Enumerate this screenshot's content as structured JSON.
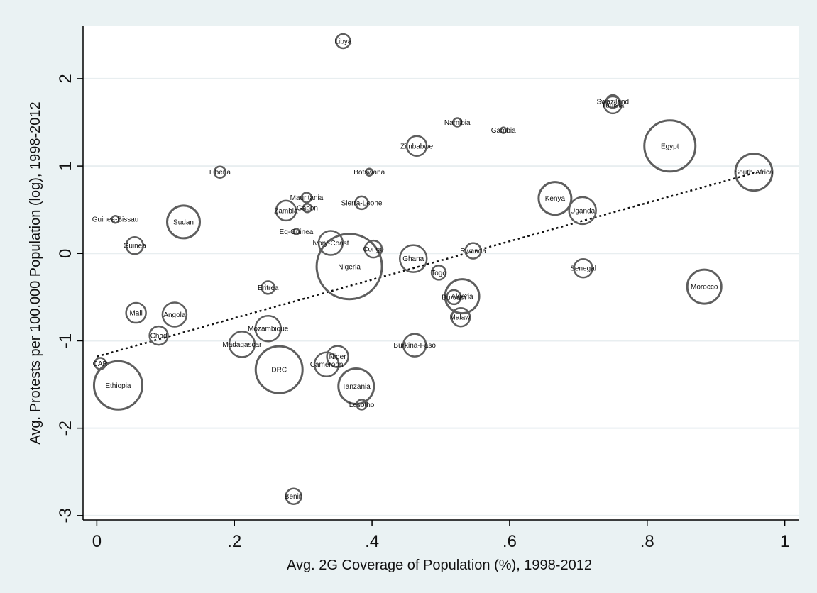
{
  "chart_data": {
    "type": "scatter",
    "title": "",
    "xlabel": "Avg. 2G Coverage of Population (%), 1998-2012",
    "ylabel": "Avg. Protests per 100.000 Population (log), 1998-2012",
    "xlim": [
      -0.02,
      1.02
    ],
    "ylim": [
      -3.05,
      2.6
    ],
    "x_ticks": [
      0,
      0.2,
      0.4,
      0.6,
      0.8,
      1
    ],
    "x_tick_labels": [
      "0",
      ".2",
      ".4",
      ".6",
      ".8",
      "1"
    ],
    "y_ticks": [
      -3,
      -2,
      -1,
      0,
      1,
      2
    ],
    "y_tick_labels": [
      "-3",
      "-2",
      "-1",
      "0",
      "1",
      "2"
    ],
    "grid": "horizontal",
    "marker": "hollow circle, size weighted by population",
    "fit_line": {
      "style": "dotted",
      "x": [
        0,
        0.955
      ],
      "y": [
        -1.18,
        0.92
      ]
    },
    "points": [
      {
        "label": "Libya",
        "x": 0.358,
        "y": 2.43,
        "size": 10
      },
      {
        "label": "Swaziland",
        "x": 0.75,
        "y": 1.74,
        "size": 9
      },
      {
        "label": "Tunisia",
        "x": 0.75,
        "y": 1.7,
        "size": 12
      },
      {
        "label": "Namibia",
        "x": 0.524,
        "y": 1.5,
        "size": 6
      },
      {
        "label": "Gambia",
        "x": 0.591,
        "y": 1.41,
        "size": 4
      },
      {
        "label": "Egypt",
        "x": 0.833,
        "y": 1.23,
        "size": 36
      },
      {
        "label": "Zimbabwe",
        "x": 0.465,
        "y": 1.23,
        "size": 14
      },
      {
        "label": "South-Africa",
        "x": 0.955,
        "y": 0.93,
        "size": 26
      },
      {
        "label": "Liberia",
        "x": 0.179,
        "y": 0.93,
        "size": 8
      },
      {
        "label": "Botswana",
        "x": 0.396,
        "y": 0.93,
        "size": 5
      },
      {
        "label": "Mauritania",
        "x": 0.305,
        "y": 0.64,
        "size": 7
      },
      {
        "label": "Kenya",
        "x": 0.666,
        "y": 0.63,
        "size": 23
      },
      {
        "label": "Sierra-Leone",
        "x": 0.385,
        "y": 0.58,
        "size": 9
      },
      {
        "label": "Gabon",
        "x": 0.306,
        "y": 0.52,
        "size": 6
      },
      {
        "label": "Zambia",
        "x": 0.275,
        "y": 0.49,
        "size": 14
      },
      {
        "label": "Uganda",
        "x": 0.706,
        "y": 0.49,
        "size": 19
      },
      {
        "label": "Guinea-Bissau",
        "x": 0.027,
        "y": 0.39,
        "size": 5
      },
      {
        "label": "Sudan",
        "x": 0.126,
        "y": 0.36,
        "size": 23
      },
      {
        "label": "Eq-Guinea",
        "x": 0.29,
        "y": 0.25,
        "size": 4
      },
      {
        "label": "Ivory-Coast",
        "x": 0.34,
        "y": 0.12,
        "size": 17
      },
      {
        "label": "Guinea",
        "x": 0.055,
        "y": 0.09,
        "size": 12
      },
      {
        "label": "Congo",
        "x": 0.402,
        "y": 0.05,
        "size": 12
      },
      {
        "label": "Rwanda",
        "x": 0.547,
        "y": 0.03,
        "size": 11
      },
      {
        "label": "Ghana",
        "x": 0.46,
        "y": -0.06,
        "size": 19
      },
      {
        "label": "Nigeria",
        "x": 0.367,
        "y": -0.15,
        "size": 46
      },
      {
        "label": "Senegal",
        "x": 0.707,
        "y": -0.17,
        "size": 13
      },
      {
        "label": "Togo",
        "x": 0.497,
        "y": -0.22,
        "size": 10
      },
      {
        "label": "Morocco",
        "x": 0.883,
        "y": -0.38,
        "size": 24
      },
      {
        "label": "Eritrea",
        "x": 0.249,
        "y": -0.39,
        "size": 9
      },
      {
        "label": "Burundi",
        "x": 0.519,
        "y": -0.5,
        "size": 10
      },
      {
        "label": "Algeria",
        "x": 0.531,
        "y": -0.49,
        "size": 24
      },
      {
        "label": "Mali",
        "x": 0.057,
        "y": -0.68,
        "size": 14
      },
      {
        "label": "Angola",
        "x": 0.113,
        "y": -0.7,
        "size": 17
      },
      {
        "label": "Malawi",
        "x": 0.529,
        "y": -0.73,
        "size": 13
      },
      {
        "label": "Mozambique",
        "x": 0.249,
        "y": -0.86,
        "size": 18
      },
      {
        "label": "Chad",
        "x": 0.09,
        "y": -0.94,
        "size": 13
      },
      {
        "label": "Madagascar",
        "x": 0.211,
        "y": -1.04,
        "size": 18
      },
      {
        "label": "Burkina-Faso",
        "x": 0.462,
        "y": -1.05,
        "size": 16
      },
      {
        "label": "Niger",
        "x": 0.35,
        "y": -1.18,
        "size": 15
      },
      {
        "label": "CAR",
        "x": 0.005,
        "y": -1.26,
        "size": 8
      },
      {
        "label": "Cameroon",
        "x": 0.334,
        "y": -1.27,
        "size": 17
      },
      {
        "label": "DRC",
        "x": 0.265,
        "y": -1.33,
        "size": 33
      },
      {
        "label": "Ethiopia",
        "x": 0.031,
        "y": -1.51,
        "size": 34
      },
      {
        "label": "Tanzania",
        "x": 0.377,
        "y": -1.52,
        "size": 25
      },
      {
        "label": "Lesotho",
        "x": 0.385,
        "y": -1.73,
        "size": 7
      },
      {
        "label": "Benin",
        "x": 0.286,
        "y": -2.78,
        "size": 11
      }
    ]
  }
}
